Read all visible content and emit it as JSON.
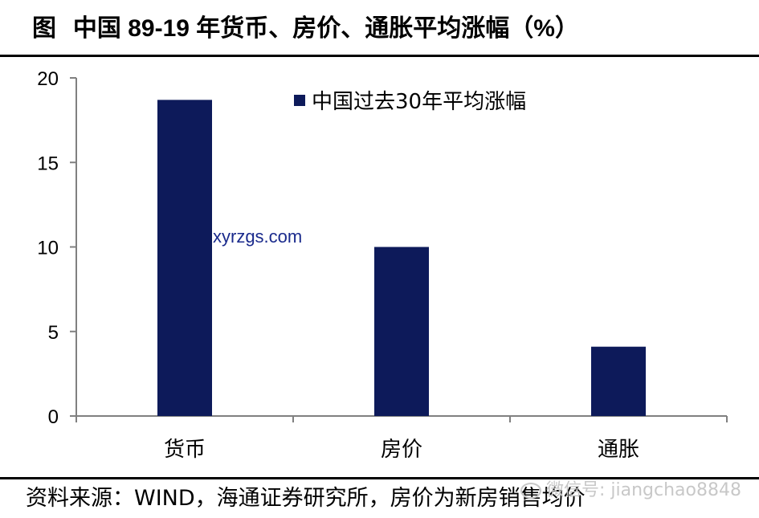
{
  "header": {
    "prefix": "图",
    "title_text": "中国 89-19 年货币、房价、通胀平均涨幅（%）"
  },
  "footer": {
    "source": "资料来源：WIND，海通证券研究所，房价为新房销售均价"
  },
  "watermarks": {
    "site": "xyrzgs.com",
    "wechat": "微信号: jiangchao8848"
  },
  "colors": {
    "bar": "#0d1a5a",
    "axis": "#808080"
  },
  "chart_data": {
    "type": "bar",
    "categories": [
      "货币",
      "房价",
      "通胀"
    ],
    "series": [
      {
        "name": "中国过去30年平均涨幅",
        "values": [
          18.7,
          10.0,
          4.1
        ]
      }
    ],
    "ylim": [
      0,
      20
    ],
    "yticks": [
      "0",
      "5",
      "10",
      "15",
      "20"
    ],
    "grid": false,
    "legend": "top-right"
  }
}
